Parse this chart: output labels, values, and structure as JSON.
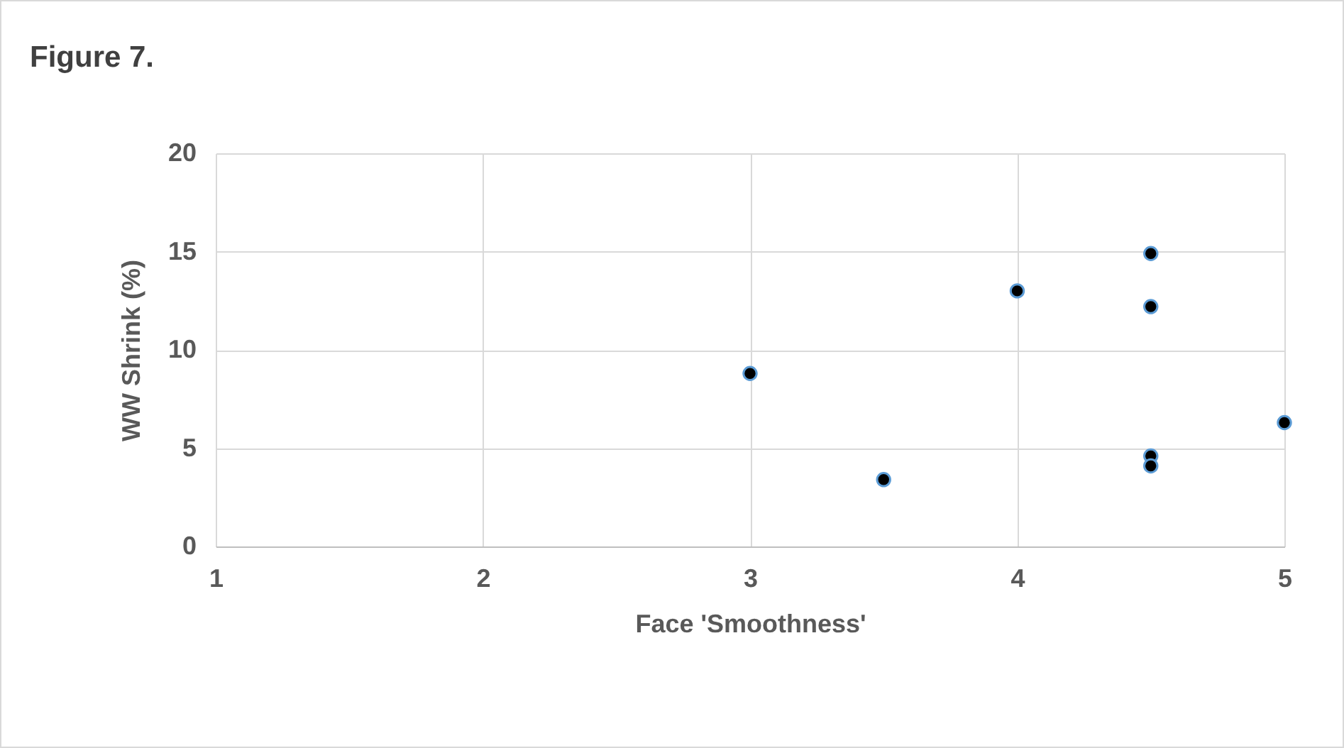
{
  "chart_data": {
    "type": "scatter",
    "title": "Figure 7.",
    "xlabel": "Face 'Smoothness'",
    "ylabel": "WW Shrink (%)",
    "x": [
      3,
      3.5,
      4,
      4.5,
      4.5,
      4.5,
      4.5,
      5
    ],
    "series": [
      {
        "color": "#000000",
        "values": [
          8.8,
          3.4,
          13.0,
          14.9,
          12.2,
          4.6,
          4.1,
          6.3
        ]
      }
    ],
    "xlim": [
      1,
      5
    ],
    "xticks": [
      1,
      2,
      3,
      4,
      5
    ],
    "ylim": [
      0,
      20
    ],
    "yticks": [
      0,
      5,
      10,
      15,
      20
    ],
    "grid": true,
    "marker": "circle"
  }
}
